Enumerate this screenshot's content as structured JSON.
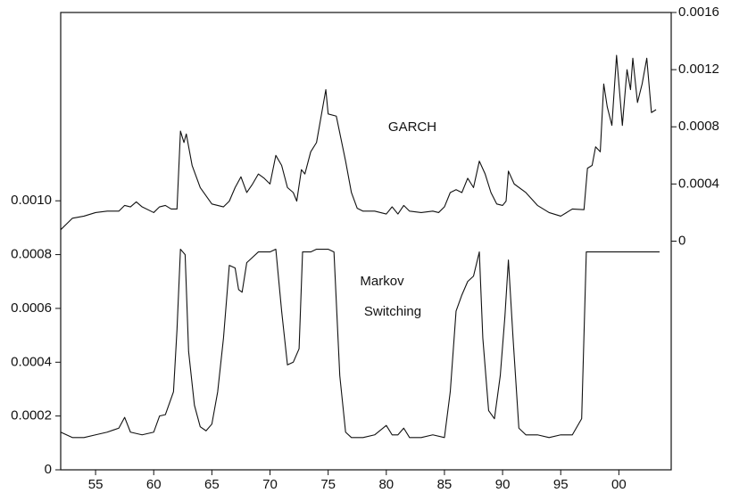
{
  "chart_data": {
    "type": "line",
    "annotations": [
      "GARCH",
      "Markov",
      "Switching"
    ],
    "xlim": [
      1952,
      2004.5
    ],
    "xticks": [
      {
        "value": 1955,
        "label": "55"
      },
      {
        "value": 1960,
        "label": "60"
      },
      {
        "value": 1965,
        "label": "65"
      },
      {
        "value": 1970,
        "label": "70"
      },
      {
        "value": 1975,
        "label": "75"
      },
      {
        "value": 1980,
        "label": "80"
      },
      {
        "value": 1985,
        "label": "85"
      },
      {
        "value": 1990,
        "label": "90"
      },
      {
        "value": 1995,
        "label": "95"
      },
      {
        "value": 2000,
        "label": "00"
      }
    ],
    "ylim": [
      0,
      0.0017
    ],
    "yticks": [
      0,
      0.0002,
      0.0004,
      0.0006,
      0.0008,
      {
        "value": 0.001,
        "label": "0.0010"
      }
    ],
    "y2lim": [
      -0.0016,
      0.0016
    ],
    "y2ticks": [
      0,
      0.0004,
      0.0008,
      0.0012,
      0.0016
    ],
    "series": [
      {
        "name": "GARCH",
        "axis": "y2",
        "color": "#111111",
        "x": [
          1952,
          1953,
          1954,
          1955,
          1956,
          1957,
          1957.5,
          1958,
          1958.5,
          1959,
          1960,
          1960.5,
          1961,
          1961.5,
          1962,
          1962.3,
          1962.6,
          1962.8,
          1963.3,
          1964,
          1965,
          1966,
          1966.5,
          1967,
          1967.5,
          1968,
          1968.5,
          1969,
          1969.5,
          1970,
          1970.5,
          1971,
          1971.5,
          1972,
          1972.3,
          1972.7,
          1973,
          1973.5,
          1974,
          1974.8,
          1975,
          1975.7,
          1976.5,
          1977,
          1977.5,
          1978,
          1979,
          1980,
          1980.5,
          1981,
          1981.5,
          1982,
          1983,
          1984,
          1984.5,
          1985,
          1985.5,
          1986,
          1986.5,
          1987,
          1987.5,
          1988,
          1988.5,
          1989,
          1989.5,
          1990,
          1990.3,
          1990.5,
          1991,
          1992,
          1993,
          1994,
          1995,
          1996,
          1997,
          1997.3,
          1997.7,
          1998,
          1998.4,
          1998.7,
          1999,
          1999.4,
          1999.8,
          2000.3,
          2000.7,
          2001,
          2001.2,
          2001.6,
          2002,
          2002.4,
          2002.8,
          2003.2
        ],
        "values": [
          8e-05,
          0.00016,
          0.000175,
          0.0002,
          0.00021,
          0.00021,
          0.00025,
          0.00024,
          0.000275,
          0.00024,
          0.0002,
          0.00024,
          0.00025,
          0.000225,
          0.000225,
          0.00077,
          0.00069,
          0.00075,
          0.00053,
          0.000375,
          0.00026,
          0.00024,
          0.00028,
          0.000375,
          0.00045,
          0.00034,
          0.0004,
          0.00047,
          0.00044,
          0.0004,
          0.0006,
          0.00053,
          0.000375,
          0.00034,
          0.00028,
          0.0005,
          0.00047,
          0.000625,
          0.00069,
          0.00106,
          0.00089,
          0.000875,
          0.00056,
          0.00034,
          0.00023,
          0.00021,
          0.00021,
          0.00019,
          0.00024,
          0.00019,
          0.00025,
          0.00021,
          0.0002,
          0.00021,
          0.0002,
          0.00024,
          0.00034,
          0.00036,
          0.00034,
          0.00044,
          0.000375,
          0.00056,
          0.00047,
          0.00034,
          0.00026,
          0.00025,
          0.00028,
          0.00049,
          0.0004,
          0.00034,
          0.00025,
          0.0002,
          0.000175,
          0.000225,
          0.00022,
          0.00051,
          0.00053,
          0.00066,
          0.000625,
          0.0011,
          0.00094,
          0.00081,
          0.0013,
          0.00081,
          0.0012,
          0.00106,
          0.00128,
          0.00097,
          0.0011,
          0.00128,
          0.0009,
          0.00092
        ]
      },
      {
        "name": "Markov Switching",
        "color": "#111111",
        "x": [
          1952,
          1953,
          1954,
          1955,
          1956,
          1957,
          1957.5,
          1958,
          1959,
          1960,
          1960.5,
          1961,
          1961.7,
          1962,
          1962.3,
          1962.7,
          1963,
          1963.5,
          1964,
          1964.5,
          1965,
          1965.5,
          1966,
          1966.5,
          1967,
          1967.3,
          1967.6,
          1968,
          1968.5,
          1969,
          1970,
          1970.5,
          1971,
          1971.5,
          1972,
          1972.5,
          1972.8,
          1973.5,
          1974,
          1975,
          1975.5,
          1976,
          1976.5,
          1977,
          1978,
          1979,
          1980,
          1980.5,
          1981,
          1981.5,
          1982,
          1983,
          1984,
          1985,
          1985.5,
          1986,
          1986.5,
          1987,
          1987.5,
          1988,
          1988.3,
          1988.8,
          1989.3,
          1989.8,
          1990.2,
          1990.5,
          1990.9,
          1991.4,
          1992,
          1993,
          1994,
          1995,
          1996,
          1996.8,
          1997.2,
          1998,
          1999,
          2000,
          2001,
          2002,
          2003,
          2003.5
        ],
        "values": [
          0.00014,
          0.00012,
          0.00012,
          0.00013,
          0.00014,
          0.000155,
          0.000195,
          0.00014,
          0.00013,
          0.00014,
          0.0002,
          0.000205,
          0.00029,
          0.00052,
          0.00082,
          0.0008,
          0.00044,
          0.00024,
          0.00016,
          0.000145,
          0.00017,
          0.00029,
          0.00049,
          0.00076,
          0.00075,
          0.00067,
          0.00066,
          0.00077,
          0.00079,
          0.00081,
          0.00081,
          0.00082,
          0.00059,
          0.00039,
          0.0004,
          0.00045,
          0.00081,
          0.00081,
          0.00082,
          0.00082,
          0.00081,
          0.00035,
          0.00014,
          0.00012,
          0.00012,
          0.00013,
          0.000165,
          0.00013,
          0.00013,
          0.000155,
          0.00012,
          0.00012,
          0.00013,
          0.00012,
          0.00029,
          0.00059,
          0.00065,
          0.0007,
          0.00072,
          0.00081,
          0.00049,
          0.00022,
          0.00019,
          0.00035,
          0.00057,
          0.00078,
          0.00049,
          0.000155,
          0.00013,
          0.00013,
          0.00012,
          0.00013,
          0.00013,
          0.00019,
          0.00081,
          0.00081,
          0.00081,
          0.00081,
          0.00081,
          0.00081,
          0.00081,
          0.00081
        ]
      }
    ]
  }
}
